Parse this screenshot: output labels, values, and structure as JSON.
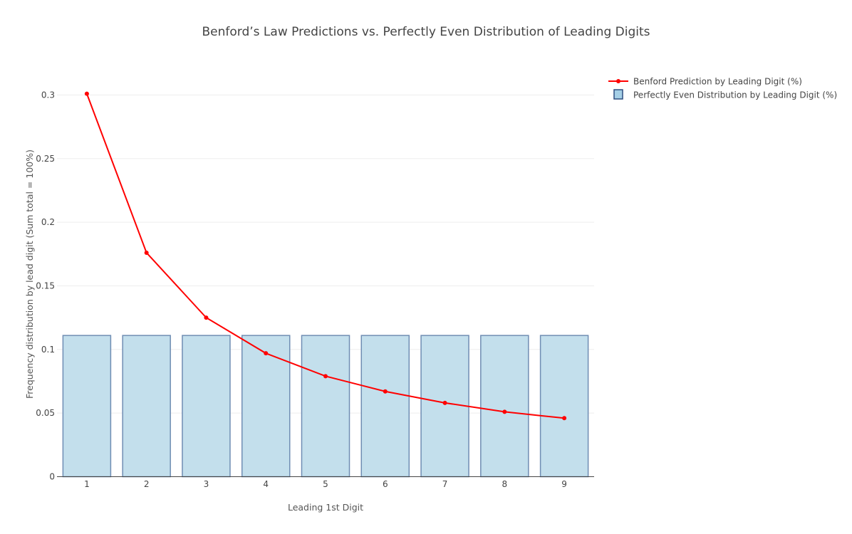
{
  "chart_data": {
    "type": "bar",
    "title": "Benford’s Law Predictions vs. Perfectly Even Distribution of Leading Digits",
    "xlabel": "Leading 1st Digit",
    "ylabel": "Frequency distribution by lead digit (Sum total = 100%)",
    "categories": [
      "1",
      "2",
      "3",
      "4",
      "5",
      "6",
      "7",
      "8",
      "9"
    ],
    "ylim": [
      0,
      0.32
    ],
    "yticks": [
      0,
      0.05,
      0.1,
      0.15,
      0.2,
      0.25,
      0.3
    ],
    "ytick_labels": [
      "0",
      "0.05",
      "0.1",
      "0.15",
      "0.2",
      "0.25",
      "0.3"
    ],
    "grid": true,
    "legend_position": "top-right",
    "series": [
      {
        "name": "Perfectly Even Distribution by Leading Digit (%)",
        "type": "bar",
        "values": [
          0.111,
          0.111,
          0.111,
          0.111,
          0.111,
          0.111,
          0.111,
          0.111,
          0.111
        ],
        "color": "#c3dfec",
        "edge_color": "#6f8db3"
      },
      {
        "name": "Benford Prediction by Leading Digit (%)",
        "type": "line",
        "values": [
          0.301,
          0.176,
          0.125,
          0.097,
          0.079,
          0.067,
          0.058,
          0.051,
          0.046
        ],
        "color": "#ff0000"
      }
    ]
  }
}
